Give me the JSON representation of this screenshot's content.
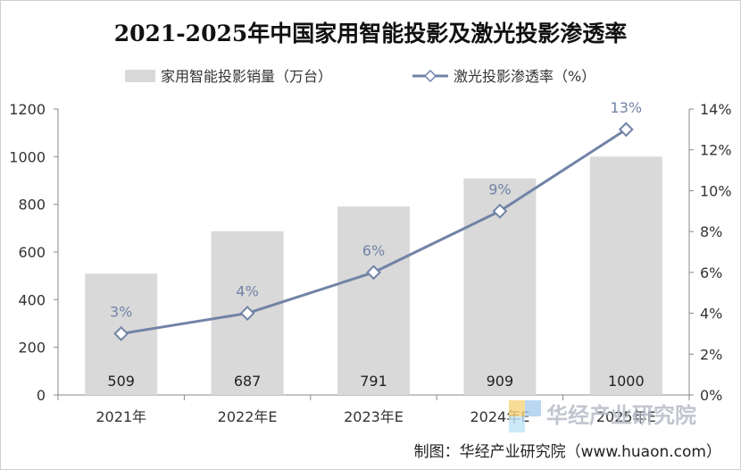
{
  "chart_data": {
    "type": "bar+line",
    "title": "2021-2025年中国家用智能投影及激光投影渗透率",
    "categories": [
      "2021年",
      "2022年E",
      "2023年E",
      "2024年E",
      "2025年E"
    ],
    "series": [
      {
        "name": "家用智能投影销量（万台）",
        "type": "bar",
        "axis": "left",
        "values": [
          509,
          687,
          791,
          909,
          1000
        ],
        "color": "#d9d9d9"
      },
      {
        "name": "激光投影渗透率（%）",
        "type": "line",
        "axis": "right",
        "values": [
          3,
          4,
          6,
          9,
          13
        ],
        "color": "#7183a6",
        "marker": "diamond"
      }
    ],
    "bar_labels": [
      "509",
      "687",
      "791",
      "909",
      "1000"
    ],
    "line_labels": [
      "3%",
      "4%",
      "6%",
      "9%",
      "13%"
    ],
    "y_left": {
      "min": 0,
      "max": 1200,
      "ticks": [
        "0",
        "200",
        "400",
        "600",
        "800",
        "1000",
        "1200"
      ]
    },
    "y_right": {
      "min": 0,
      "max": 14,
      "ticks": [
        "0%",
        "2%",
        "4%",
        "6%",
        "8%",
        "10%",
        "12%",
        "14%"
      ]
    },
    "grid": false,
    "legend": "top-center"
  },
  "watermark": {
    "cn": "华经产业研究院",
    "url": "www.huaon.com"
  },
  "source": "制图：华经产业研究院（www.huaon.com）"
}
